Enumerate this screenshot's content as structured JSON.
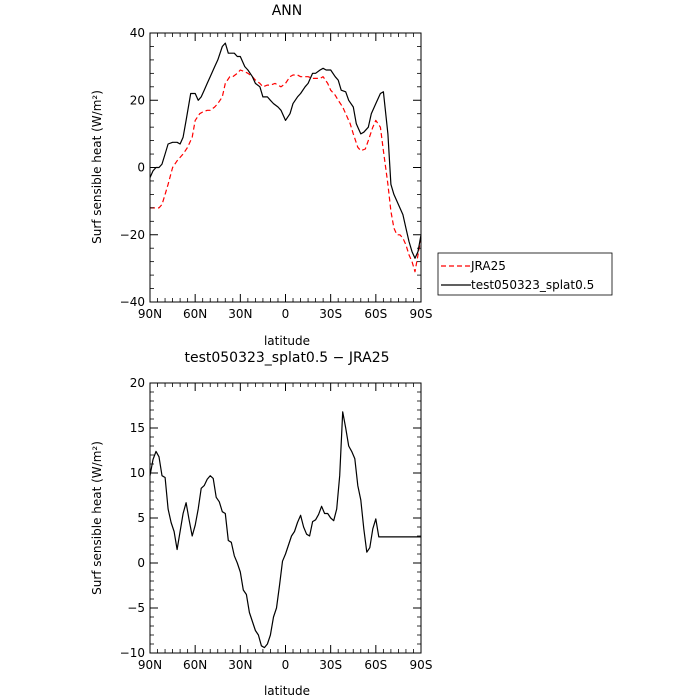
{
  "chart_data": [
    {
      "type": "line",
      "title": "ANN",
      "xlabel": "latitude",
      "ylabel": "Surf sensible heat (W/m²)",
      "xlim": [
        -90,
        90
      ],
      "ylim": [
        -40,
        40
      ],
      "x_tick_values": [
        -90,
        -60,
        -30,
        0,
        30,
        60,
        90
      ],
      "x_tick_labels": [
        "90N",
        "60N",
        "30N",
        "0",
        "30S",
        "60S",
        "90S"
      ],
      "y_tick_values": [
        -40,
        -20,
        0,
        20,
        40
      ],
      "y_tick_labels": [
        "−40",
        "−20",
        "0",
        "20",
        "40"
      ],
      "legend_position": "right",
      "series": [
        {
          "name": "JRA25",
          "color": "#ff0000",
          "dash": "dashed",
          "x": [
            -90,
            -86,
            -84,
            -82,
            -80,
            -78,
            -75,
            -72,
            -70,
            -68,
            -65,
            -62,
            -60,
            -57,
            -55,
            -52,
            -50,
            -47,
            -45,
            -42,
            -40,
            -37,
            -35,
            -32,
            -30,
            -27,
            -25,
            -22,
            -20,
            -17,
            -15,
            -12,
            -10,
            -7,
            -5,
            -3,
            0,
            3,
            5,
            8,
            10,
            13,
            15,
            18,
            20,
            23,
            25,
            28,
            30,
            33,
            35,
            38,
            40,
            43,
            45,
            48,
            50,
            53,
            55,
            58,
            60,
            63,
            65,
            68,
            70,
            72,
            74,
            76,
            78,
            80,
            82,
            84,
            86,
            88,
            90
          ],
          "y": [
            -12,
            -12,
            -12,
            -11,
            -8,
            -5,
            0,
            2,
            3,
            4,
            6,
            9,
            14,
            16,
            16.5,
            17,
            17,
            18,
            19,
            21,
            25,
            27,
            27,
            28,
            29,
            28.5,
            28,
            27,
            26,
            25,
            24,
            24.5,
            24.5,
            25,
            24.5,
            24,
            25,
            27,
            27.5,
            27.5,
            27,
            27,
            27,
            26.5,
            26.5,
            26.5,
            27,
            25,
            23,
            21.5,
            20,
            18,
            16,
            13,
            10,
            6,
            5,
            5.5,
            8,
            12,
            14,
            12,
            5,
            -5,
            -13,
            -18,
            -20,
            -20,
            -21,
            -23,
            -26,
            -28,
            -31,
            -26,
            -21
          ]
        },
        {
          "name": "test050323_splat0.5",
          "color": "#000000",
          "dash": "solid",
          "x": [
            -90,
            -88,
            -86,
            -84,
            -82,
            -80,
            -78,
            -75,
            -72,
            -70,
            -68,
            -66,
            -63,
            -60,
            -58,
            -56,
            -54,
            -52,
            -50,
            -47,
            -45,
            -42,
            -40,
            -38,
            -36,
            -34,
            -32,
            -30,
            -27,
            -25,
            -22,
            -20,
            -17,
            -15,
            -12,
            -10,
            -8,
            -5,
            -3,
            0,
            3,
            5,
            8,
            10,
            13,
            15,
            18,
            20,
            23,
            25,
            27,
            30,
            33,
            35,
            37,
            40,
            42,
            45,
            47,
            50,
            52,
            55,
            57,
            60,
            63,
            65,
            68,
            70,
            72,
            74,
            76,
            78,
            80,
            82,
            84,
            86,
            88,
            90
          ],
          "y": [
            -3,
            -1,
            0,
            0,
            1,
            4,
            7,
            7.5,
            7.5,
            7,
            9,
            14,
            22,
            22,
            20,
            21,
            23,
            25,
            27,
            30,
            32,
            36,
            37,
            34,
            34,
            34,
            33,
            33,
            30,
            29,
            27,
            25,
            24,
            21,
            21,
            20,
            19,
            18,
            17,
            14,
            16,
            19,
            21,
            22,
            24,
            25,
            28,
            28,
            29,
            29.5,
            29,
            29,
            27,
            26,
            23,
            22.5,
            20,
            18,
            13,
            10,
            10.5,
            12,
            16,
            19,
            22,
            22.5,
            10,
            -5,
            -8,
            -10,
            -12,
            -14,
            -18,
            -22,
            -25,
            -27,
            -25,
            -20
          ]
        }
      ]
    },
    {
      "type": "line",
      "title": "test050323_splat0.5 − JRA25",
      "xlabel": "latitude",
      "ylabel": "Surf sensible heat (W/m²)",
      "xlim": [
        -90,
        90
      ],
      "ylim": [
        -10,
        20
      ],
      "x_tick_values": [
        -90,
        -60,
        -30,
        0,
        30,
        60,
        90
      ],
      "x_tick_labels": [
        "90N",
        "60N",
        "30N",
        "0",
        "30S",
        "60S",
        "90S"
      ],
      "y_tick_values": [
        -10,
        -5,
        0,
        5,
        10,
        15,
        20
      ],
      "y_tick_labels": [
        "−10",
        "−5",
        "0",
        "5",
        "10",
        "15",
        "20"
      ],
      "series": [
        {
          "color": "#000000",
          "dash": "solid",
          "x": [
            -90,
            -88,
            -86,
            -84,
            -82,
            -80,
            -78,
            -76,
            -74,
            -72,
            -70,
            -68,
            -66,
            -64,
            -62,
            -60,
            -58,
            -56,
            -54,
            -52,
            -50,
            -48,
            -46,
            -44,
            -42,
            -40,
            -38,
            -36,
            -34,
            -32,
            -30,
            -28,
            -26,
            -24,
            -22,
            -20,
            -18,
            -16,
            -14,
            -12,
            -10,
            -8,
            -6,
            -4,
            -2,
            0,
            2,
            4,
            6,
            8,
            10,
            12,
            14,
            16,
            18,
            20,
            22,
            24,
            26,
            28,
            30,
            32,
            34,
            36,
            38,
            40,
            42,
            44,
            46,
            48,
            50,
            52,
            54,
            56,
            58,
            60,
            62,
            64,
            66,
            68,
            70,
            72,
            74,
            76,
            78,
            80,
            82,
            84,
            86,
            88,
            90
          ],
          "y": [
            9.7,
            11.5,
            12.4,
            11.8,
            9.7,
            9.5,
            6.0,
            4.5,
            3.5,
            1.5,
            3.5,
            5.5,
            6.7,
            4.8,
            3.0,
            4.2,
            6.0,
            8.3,
            8.6,
            9.3,
            9.7,
            9.4,
            7.3,
            6.8,
            5.7,
            5.5,
            2.5,
            2.3,
            0.8,
            0.0,
            -1.0,
            -3.0,
            -3.5,
            -5.5,
            -6.5,
            -7.5,
            -8.0,
            -9.2,
            -9.4,
            -9.0,
            -8.0,
            -6.0,
            -5.0,
            -2.5,
            0.2,
            1.0,
            2.0,
            3.0,
            3.5,
            4.5,
            5.3,
            4.0,
            3.2,
            3.0,
            4.6,
            4.8,
            5.4,
            6.3,
            5.5,
            5.5,
            5.0,
            4.7,
            6.0,
            9.7,
            16.8,
            15.0,
            13.0,
            12.4,
            11.6,
            8.6,
            7.0,
            3.8,
            1.2,
            1.7,
            3.8,
            4.9,
            2.9,
            2.9,
            2.9,
            2.9,
            2.9,
            2.9,
            2.9,
            2.9,
            2.9,
            2.9,
            2.9,
            2.9,
            2.9,
            2.9,
            2.9
          ]
        }
      ]
    }
  ]
}
